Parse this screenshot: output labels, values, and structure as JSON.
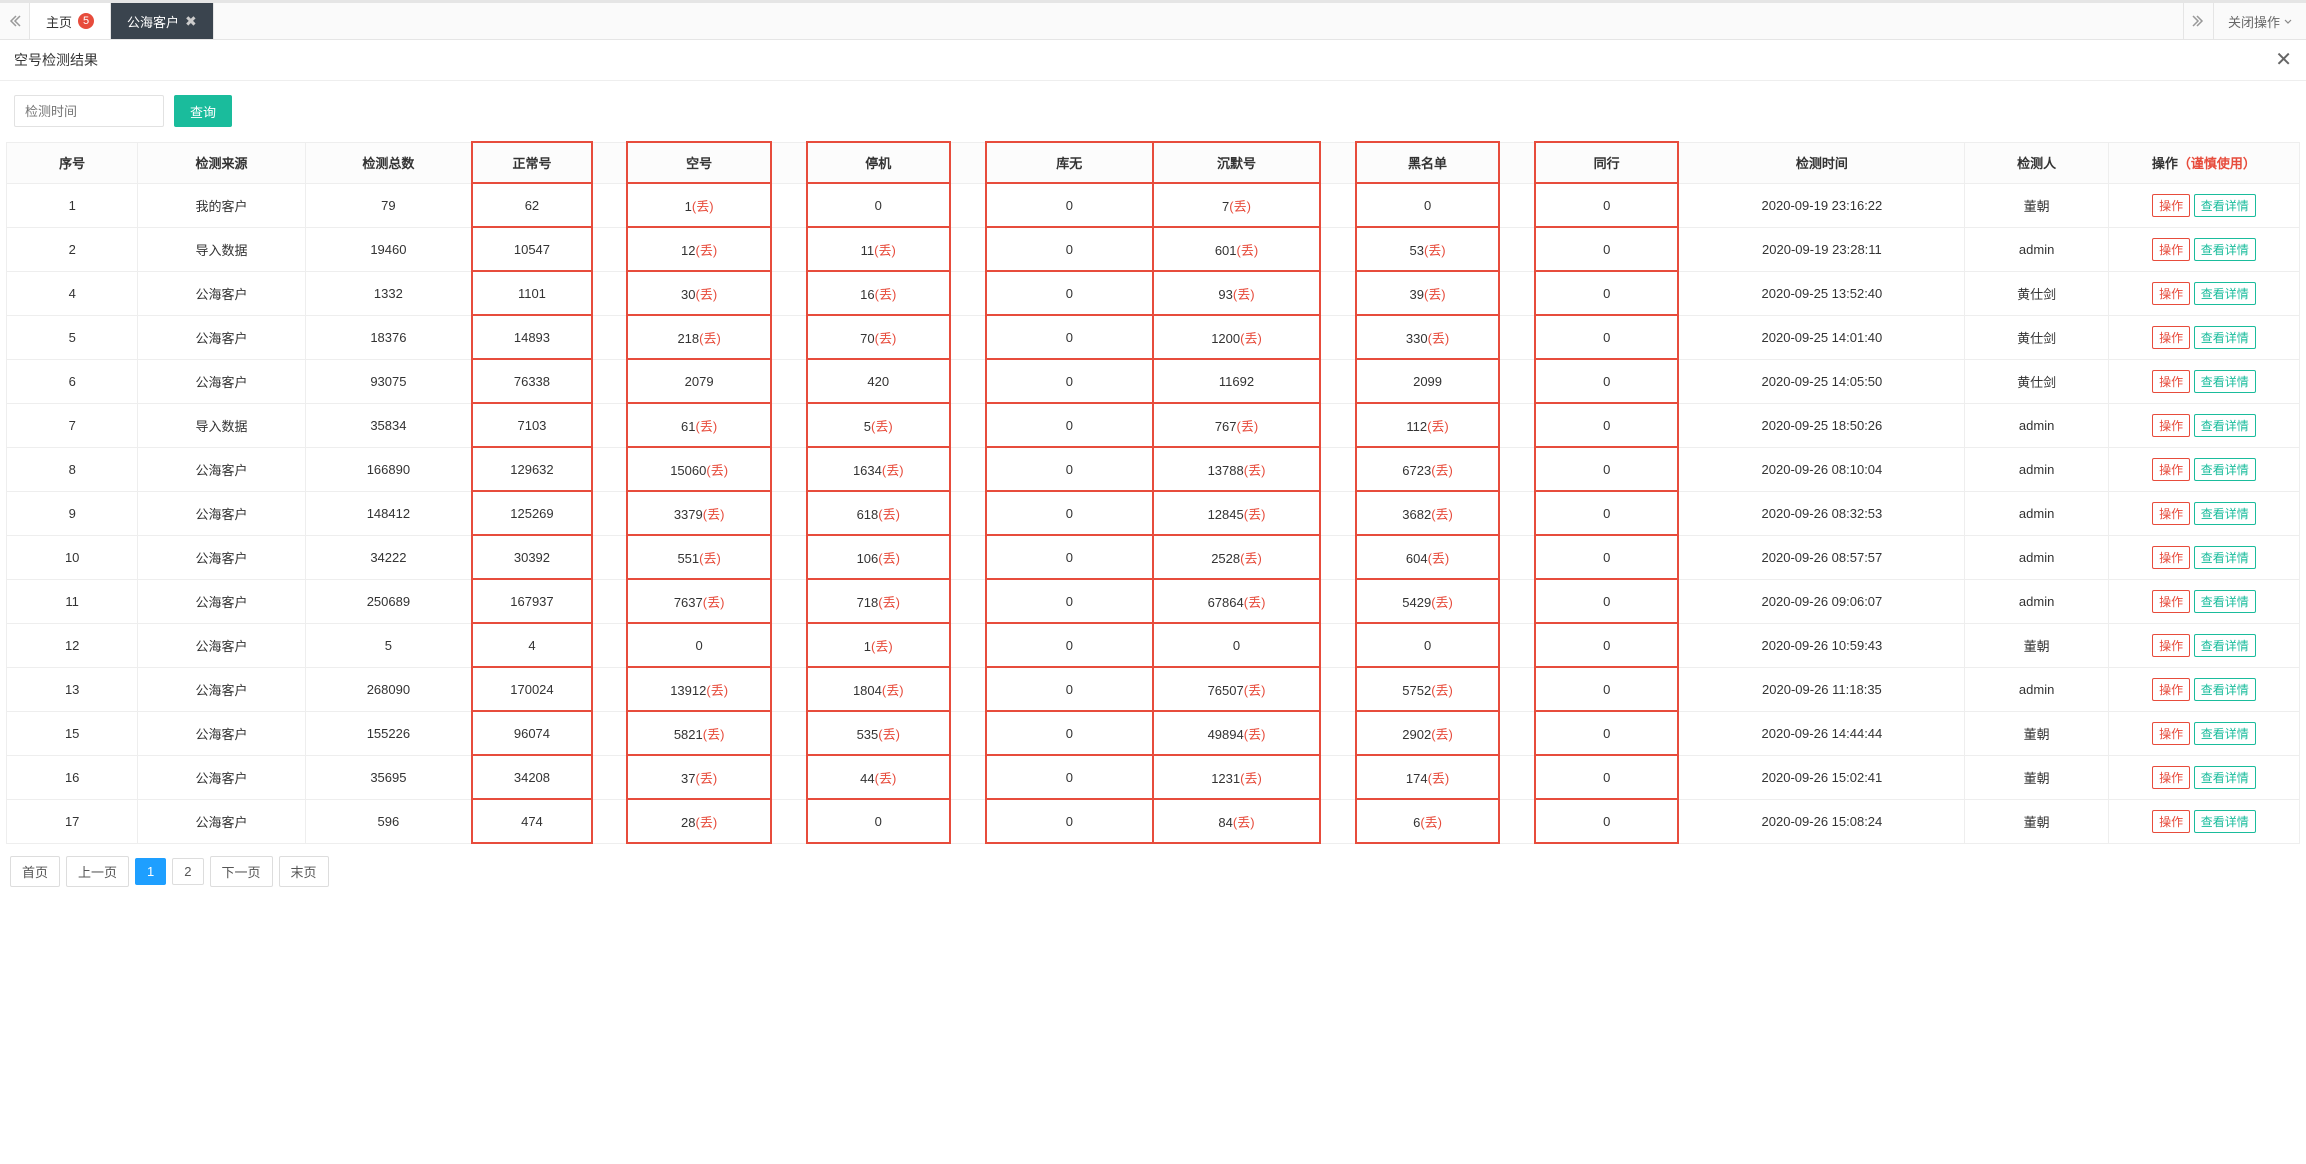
{
  "topbar": {
    "home_label": "主页",
    "home_badge": "5",
    "active_tab_label": "公海客户",
    "close_menu_label": "关闭操作"
  },
  "panel": {
    "title": "空号检测结果"
  },
  "filter": {
    "placeholder": "检测时间",
    "query_label": "查询"
  },
  "columns": {
    "seq": "序号",
    "source": "检测来源",
    "total": "检测总数",
    "normal": "正常号",
    "empty": "空号",
    "suspended": "停机",
    "notexist": "库无",
    "silent": "沉默号",
    "blacklist": "黑名单",
    "peer": "同行",
    "time": "检测时间",
    "operator": "检测人",
    "action": "操作",
    "action_warn": "（谨慎使用）"
  },
  "discard_suffix": "(丢)",
  "actions": {
    "op": "操作",
    "detail": "查看详情"
  },
  "rows": [
    {
      "seq": "1",
      "source": "我的客户",
      "total": "79",
      "normal": "62",
      "empty": "1",
      "empty_d": true,
      "susp": "0",
      "susp_d": false,
      "kuwu": "0",
      "silent": "7",
      "silent_d": true,
      "black": "0",
      "black_d": false,
      "peer": "0",
      "time": "2020-09-19 23:16:22",
      "who": "董朝"
    },
    {
      "seq": "2",
      "source": "导入数据",
      "total": "19460",
      "normal": "10547",
      "empty": "12",
      "empty_d": true,
      "susp": "11",
      "susp_d": true,
      "kuwu": "0",
      "silent": "601",
      "silent_d": true,
      "black": "53",
      "black_d": true,
      "peer": "0",
      "time": "2020-09-19 23:28:11",
      "who": "admin"
    },
    {
      "seq": "4",
      "source": "公海客户",
      "total": "1332",
      "normal": "1101",
      "empty": "30",
      "empty_d": true,
      "susp": "16",
      "susp_d": true,
      "kuwu": "0",
      "silent": "93",
      "silent_d": true,
      "black": "39",
      "black_d": true,
      "peer": "0",
      "time": "2020-09-25 13:52:40",
      "who": "黄仕剑"
    },
    {
      "seq": "5",
      "source": "公海客户",
      "total": "18376",
      "normal": "14893",
      "empty": "218",
      "empty_d": true,
      "susp": "70",
      "susp_d": true,
      "kuwu": "0",
      "silent": "1200",
      "silent_d": true,
      "black": "330",
      "black_d": true,
      "peer": "0",
      "time": "2020-09-25 14:01:40",
      "who": "黄仕剑"
    },
    {
      "seq": "6",
      "source": "公海客户",
      "total": "93075",
      "normal": "76338",
      "empty": "2079",
      "empty_d": false,
      "susp": "420",
      "susp_d": false,
      "kuwu": "0",
      "silent": "11692",
      "silent_d": false,
      "black": "2099",
      "black_d": false,
      "peer": "0",
      "time": "2020-09-25 14:05:50",
      "who": "黄仕剑"
    },
    {
      "seq": "7",
      "source": "导入数据",
      "total": "35834",
      "normal": "7103",
      "empty": "61",
      "empty_d": true,
      "susp": "5",
      "susp_d": true,
      "kuwu": "0",
      "silent": "767",
      "silent_d": true,
      "black": "112",
      "black_d": true,
      "peer": "0",
      "time": "2020-09-25 18:50:26",
      "who": "admin"
    },
    {
      "seq": "8",
      "source": "公海客户",
      "total": "166890",
      "normal": "129632",
      "empty": "15060",
      "empty_d": true,
      "susp": "1634",
      "susp_d": true,
      "kuwu": "0",
      "silent": "13788",
      "silent_d": true,
      "black": "6723",
      "black_d": true,
      "peer": "0",
      "time": "2020-09-26 08:10:04",
      "who": "admin"
    },
    {
      "seq": "9",
      "source": "公海客户",
      "total": "148412",
      "normal": "125269",
      "empty": "3379",
      "empty_d": true,
      "susp": "618",
      "susp_d": true,
      "kuwu": "0",
      "silent": "12845",
      "silent_d": true,
      "black": "3682",
      "black_d": true,
      "peer": "0",
      "time": "2020-09-26 08:32:53",
      "who": "admin"
    },
    {
      "seq": "10",
      "source": "公海客户",
      "total": "34222",
      "normal": "30392",
      "empty": "551",
      "empty_d": true,
      "susp": "106",
      "susp_d": true,
      "kuwu": "0",
      "silent": "2528",
      "silent_d": true,
      "black": "604",
      "black_d": true,
      "peer": "0",
      "time": "2020-09-26 08:57:57",
      "who": "admin"
    },
    {
      "seq": "11",
      "source": "公海客户",
      "total": "250689",
      "normal": "167937",
      "empty": "7637",
      "empty_d": true,
      "susp": "718",
      "susp_d": true,
      "kuwu": "0",
      "silent": "67864",
      "silent_d": true,
      "black": "5429",
      "black_d": true,
      "peer": "0",
      "time": "2020-09-26 09:06:07",
      "who": "admin"
    },
    {
      "seq": "12",
      "source": "公海客户",
      "total": "5",
      "normal": "4",
      "empty": "0",
      "empty_d": false,
      "susp": "1",
      "susp_d": true,
      "kuwu": "0",
      "silent": "0",
      "silent_d": false,
      "black": "0",
      "black_d": false,
      "peer": "0",
      "time": "2020-09-26 10:59:43",
      "who": "董朝"
    },
    {
      "seq": "13",
      "source": "公海客户",
      "total": "268090",
      "normal": "170024",
      "empty": "13912",
      "empty_d": true,
      "susp": "1804",
      "susp_d": true,
      "kuwu": "0",
      "silent": "76507",
      "silent_d": true,
      "black": "5752",
      "black_d": true,
      "peer": "0",
      "time": "2020-09-26 11:18:35",
      "who": "admin"
    },
    {
      "seq": "15",
      "source": "公海客户",
      "total": "155226",
      "normal": "96074",
      "empty": "5821",
      "empty_d": true,
      "susp": "535",
      "susp_d": true,
      "kuwu": "0",
      "silent": "49894",
      "silent_d": true,
      "black": "2902",
      "black_d": true,
      "peer": "0",
      "time": "2020-09-26 14:44:44",
      "who": "董朝"
    },
    {
      "seq": "16",
      "source": "公海客户",
      "total": "35695",
      "normal": "34208",
      "empty": "37",
      "empty_d": true,
      "susp": "44",
      "susp_d": true,
      "kuwu": "0",
      "silent": "1231",
      "silent_d": true,
      "black": "174",
      "black_d": true,
      "peer": "0",
      "time": "2020-09-26 15:02:41",
      "who": "董朝"
    },
    {
      "seq": "17",
      "source": "公海客户",
      "total": "596",
      "normal": "474",
      "empty": "28",
      "empty_d": true,
      "susp": "0",
      "susp_d": false,
      "kuwu": "0",
      "silent": "84",
      "silent_d": true,
      "black": "6",
      "black_d": true,
      "peer": "0",
      "time": "2020-09-26 15:08:24",
      "who": "董朝"
    }
  ],
  "pager": {
    "first": "首页",
    "prev": "上一页",
    "pages": [
      "1",
      "2"
    ],
    "active": "1",
    "next": "下一页",
    "last": "末页"
  },
  "col_widths": {
    "seq": "5.5%",
    "source": "7%",
    "total": "7%",
    "normal": "5%",
    "gap": "1.5%",
    "empty": "6%",
    "susp": "6%",
    "kuwu": "7%",
    "silent": "7%",
    "black": "6%",
    "peer": "6%",
    "time": "12%",
    "who": "6%",
    "act": "8%"
  },
  "colors": {
    "accent_green": "#1abc9c",
    "accent_red": "#e74c3c",
    "accent_blue": "#1e9fff",
    "tab_active_bg": "#3a444e"
  }
}
